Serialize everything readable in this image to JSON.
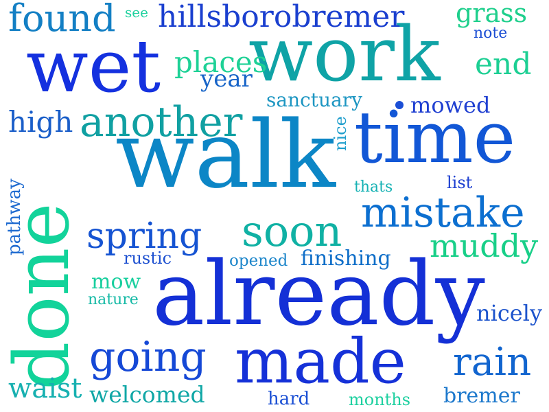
{
  "words": [
    {
      "text": "walk",
      "color": "#0c86c6"
    },
    {
      "text": "already",
      "color": "#1430d6"
    },
    {
      "text": "work",
      "color": "#0fa3a6"
    },
    {
      "text": "done",
      "color": "#12d39a"
    },
    {
      "text": "wet",
      "color": "#1431df"
    },
    {
      "text": "time",
      "color": "#1257d6"
    },
    {
      "text": "made",
      "color": "#1531d8"
    },
    {
      "text": "another",
      "color": "#10a0a2"
    },
    {
      "text": "mistake",
      "color": "#0c6fd0"
    },
    {
      "text": "going",
      "color": "#1548d6"
    },
    {
      "text": "found",
      "color": "#137fc4"
    },
    {
      "text": "hillsborobremer",
      "color": "#1a3fcf"
    },
    {
      "text": "soon",
      "color": "#10b1a4"
    },
    {
      "text": "spring",
      "color": "#1553d2"
    },
    {
      "text": "rain",
      "color": "#1265cf"
    },
    {
      "text": "muddy",
      "color": "#18cf88"
    },
    {
      "text": "high",
      "color": "#1a5ec9"
    },
    {
      "text": "places",
      "color": "#1ed196"
    },
    {
      "text": "end",
      "color": "#1ccf93"
    },
    {
      "text": "grass",
      "color": "#1ecf8c"
    },
    {
      "text": "year",
      "color": "#1764c8"
    },
    {
      "text": "sanctuary",
      "color": "#1d96c2"
    },
    {
      "text": "mowed",
      "color": "#1f3fd1"
    },
    {
      "text": "finishing",
      "color": "#0f6ec8"
    },
    {
      "text": "waist",
      "color": "#16b0b0"
    },
    {
      "text": "welcomed",
      "color": "#10a7a6"
    },
    {
      "text": "nicely",
      "color": "#1d54cc"
    },
    {
      "text": "bremer",
      "color": "#1c78cc"
    },
    {
      "text": "pathway",
      "color": "#1f6bd0"
    },
    {
      "text": "mow",
      "color": "#18cf9e"
    },
    {
      "text": "nature",
      "color": "#14b9a5"
    },
    {
      "text": "rustic",
      "color": "#1c4fd0"
    },
    {
      "text": "opened",
      "color": "#1d86ca"
    },
    {
      "text": "months",
      "color": "#1ed0a0"
    },
    {
      "text": "hard",
      "color": "#1a4fd4"
    },
    {
      "text": "note",
      "color": "#1d4fd4"
    },
    {
      "text": "see",
      "color": "#1ed19e"
    },
    {
      "text": "thats",
      "color": "#17b2b4"
    },
    {
      "text": "list",
      "color": "#1d3fd0"
    },
    {
      "text": "nice",
      "color": "#1f9ecc"
    }
  ],
  "dot_color": "#1b4fd6"
}
